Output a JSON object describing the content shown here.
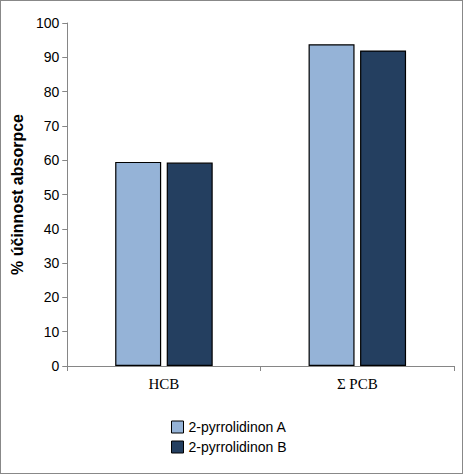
{
  "chart_data": {
    "type": "bar",
    "y_label": "% účinnost absorpce",
    "categories": [
      "HCB",
      "Σ PCB"
    ],
    "series": [
      {
        "name": "2-pyrrolidinon A",
        "color": "#95b3d7",
        "values": [
          59.5,
          93.8
        ]
      },
      {
        "name": "2-pyrrolidinon B",
        "color": "#243f60",
        "values": [
          59.3,
          92.0
        ]
      }
    ],
    "ylim": [
      0,
      100
    ],
    "yticks": [
      0,
      10,
      20,
      30,
      40,
      50,
      60,
      70,
      80,
      90,
      100
    ],
    "grid": false,
    "legend": "bottom"
  }
}
